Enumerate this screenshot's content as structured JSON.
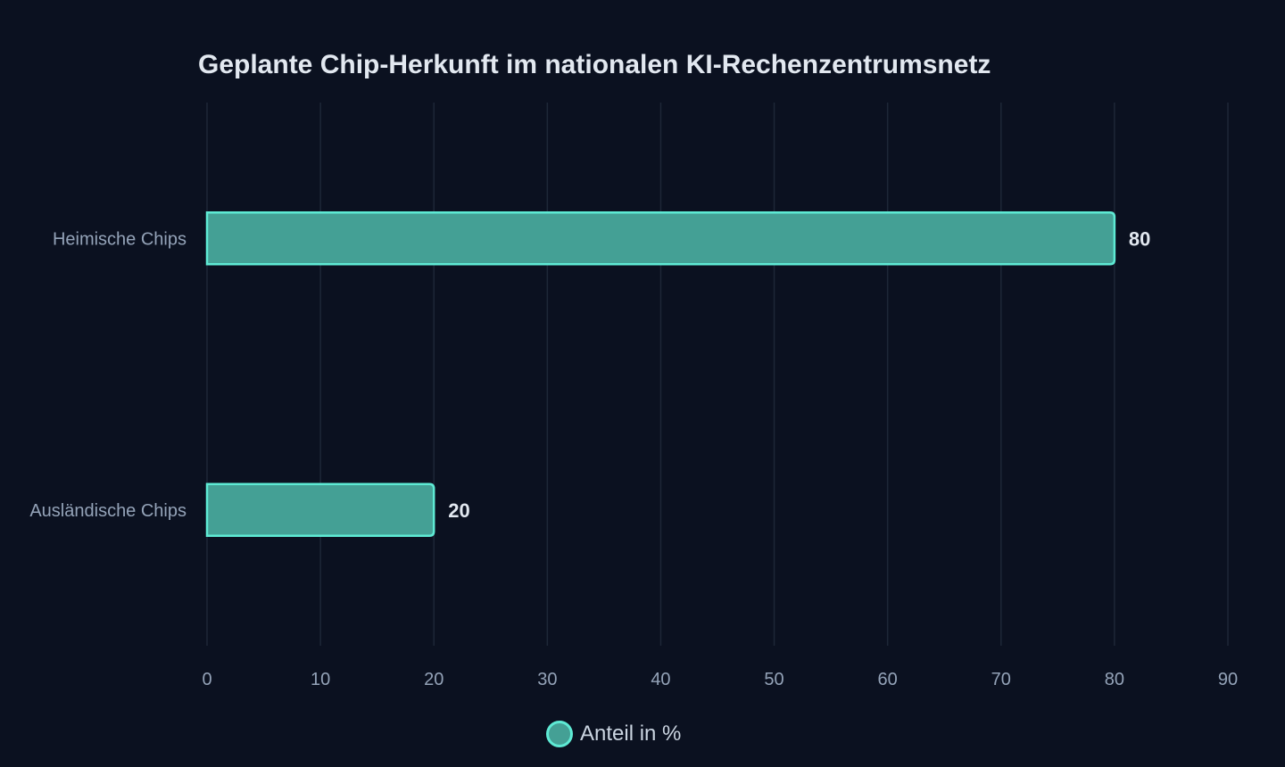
{
  "chart_data": {
    "type": "bar",
    "orientation": "horizontal",
    "title": "Geplante Chip-Herkunft im nationalen KI-Rechenzentrumsnetz",
    "categories": [
      "Heimische Chips",
      "Ausländische Chips"
    ],
    "series": [
      {
        "name": "Anteil in %",
        "values": [
          80,
          20
        ]
      }
    ],
    "xlim": [
      0,
      90
    ],
    "xticks": [
      0,
      10,
      20,
      30,
      40,
      50,
      60,
      70,
      80,
      90
    ],
    "xlabel": "",
    "ylabel": "",
    "grid": true,
    "legend_position": "bottom",
    "colors": {
      "background": "#0b1120",
      "bar_fill": "#44a095",
      "bar_stroke": "#5eead4",
      "legend_fill": "#44a095",
      "grid": "#1e2737",
      "tick_text": "#94a3b8",
      "value_text": "#e2e8f0",
      "title_text": "#e2e8f0"
    }
  }
}
